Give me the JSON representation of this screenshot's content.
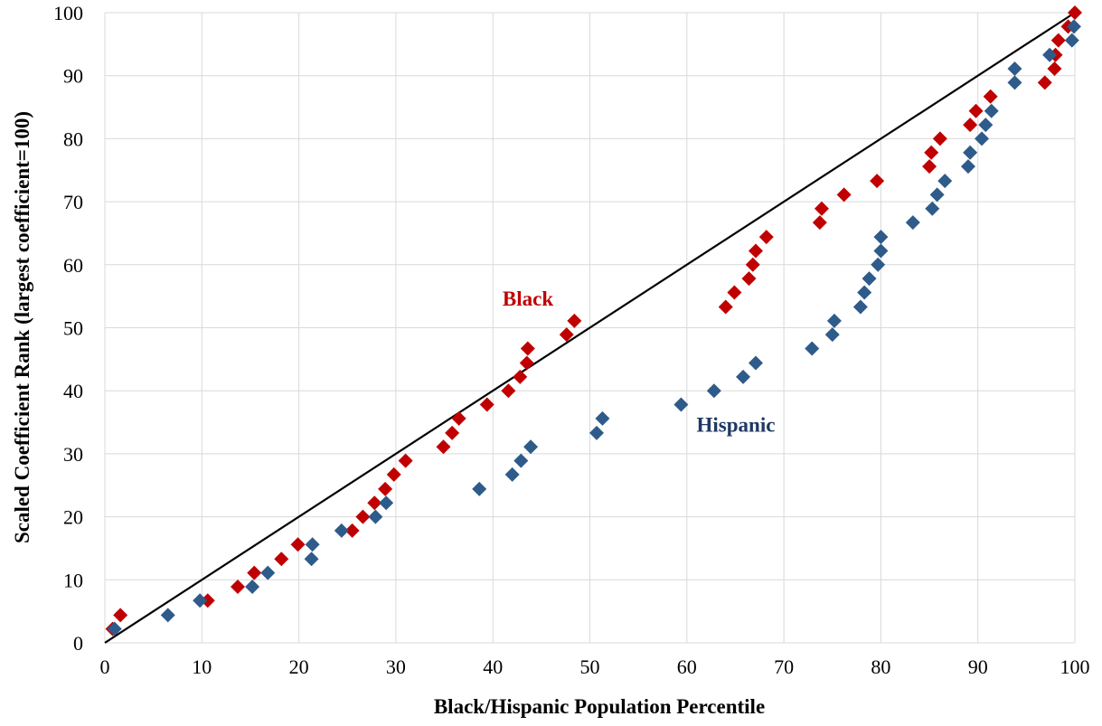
{
  "chart_data": {
    "type": "scatter",
    "title": "",
    "xlabel": "Black/Hispanic Population Percentile",
    "ylabel": "Scaled Coefficient Rank (largest coefficient=100)",
    "xlim": [
      0,
      100
    ],
    "ylim": [
      0,
      100
    ],
    "x_ticks": [
      "0",
      "10",
      "20",
      "30",
      "40",
      "50",
      "60",
      "70",
      "80",
      "90",
      "100"
    ],
    "y_ticks": [
      "0",
      "10",
      "20",
      "30",
      "40",
      "50",
      "60",
      "70",
      "80",
      "90",
      "100"
    ],
    "grid": true,
    "legend": "none",
    "reference_line": {
      "from": [
        0,
        0
      ],
      "to": [
        100,
        100
      ]
    },
    "annotations": [
      {
        "text": "Black",
        "x": 41,
        "y": 53.5,
        "color": "#c00000"
      },
      {
        "text": "Hispanic",
        "x": 61,
        "y": 33.5,
        "color": "#1f3864"
      }
    ],
    "series": [
      {
        "color": "#c00000",
        "x": [
          0.8,
          1.6,
          10.6,
          13.7,
          15.4,
          18.2,
          19.9,
          25.5,
          26.6,
          27.8,
          28.9,
          29.8,
          31.0,
          34.9,
          35.8,
          36.5,
          39.4,
          41.6,
          42.8,
          43.5,
          43.6,
          47.6,
          48.4,
          64.0,
          64.9,
          66.4,
          66.8,
          67.1,
          68.2,
          73.7,
          73.9,
          76.2,
          79.6,
          85.0,
          85.2,
          86.1,
          89.2,
          89.8,
          91.3,
          96.9,
          97.9,
          98.0,
          98.3,
          99.3,
          100.0
        ],
        "y": [
          2.2,
          4.4,
          6.7,
          8.9,
          11.1,
          13.3,
          15.6,
          17.8,
          20.0,
          22.2,
          24.4,
          26.7,
          28.9,
          31.1,
          33.3,
          35.6,
          37.8,
          40.0,
          42.2,
          44.4,
          46.7,
          48.9,
          51.1,
          53.3,
          55.6,
          57.8,
          60.0,
          62.2,
          64.4,
          66.7,
          68.9,
          71.1,
          73.3,
          75.6,
          77.8,
          80.0,
          82.2,
          84.4,
          86.7,
          88.9,
          91.1,
          93.3,
          95.6,
          97.8,
          100.0
        ]
      },
      {
        "color": "#2e5b8a",
        "x": [
          1.0,
          6.5,
          9.8,
          15.2,
          16.8,
          21.3,
          21.4,
          24.4,
          27.9,
          29.0,
          38.6,
          42.0,
          42.9,
          43.9,
          50.7,
          51.3,
          59.4,
          62.8,
          65.8,
          67.1,
          72.9,
          75.0,
          75.2,
          77.9,
          78.3,
          78.8,
          79.7,
          80.0,
          80.0,
          83.3,
          85.3,
          85.8,
          86.6,
          89.0,
          89.2,
          90.4,
          90.8,
          91.4,
          93.8,
          93.8,
          97.4,
          99.7,
          99.9
        ],
        "y": [
          2.2,
          4.4,
          6.7,
          8.9,
          11.1,
          13.3,
          15.6,
          17.8,
          20.0,
          22.2,
          24.4,
          26.7,
          28.9,
          31.1,
          33.3,
          35.6,
          37.8,
          40.0,
          42.2,
          44.4,
          46.7,
          48.9,
          51.1,
          53.3,
          55.6,
          57.8,
          60.0,
          62.2,
          64.4,
          66.7,
          68.9,
          71.1,
          73.3,
          75.6,
          77.8,
          80.0,
          82.2,
          84.4,
          88.9,
          91.1,
          93.3,
          95.6,
          97.8
        ]
      }
    ]
  }
}
